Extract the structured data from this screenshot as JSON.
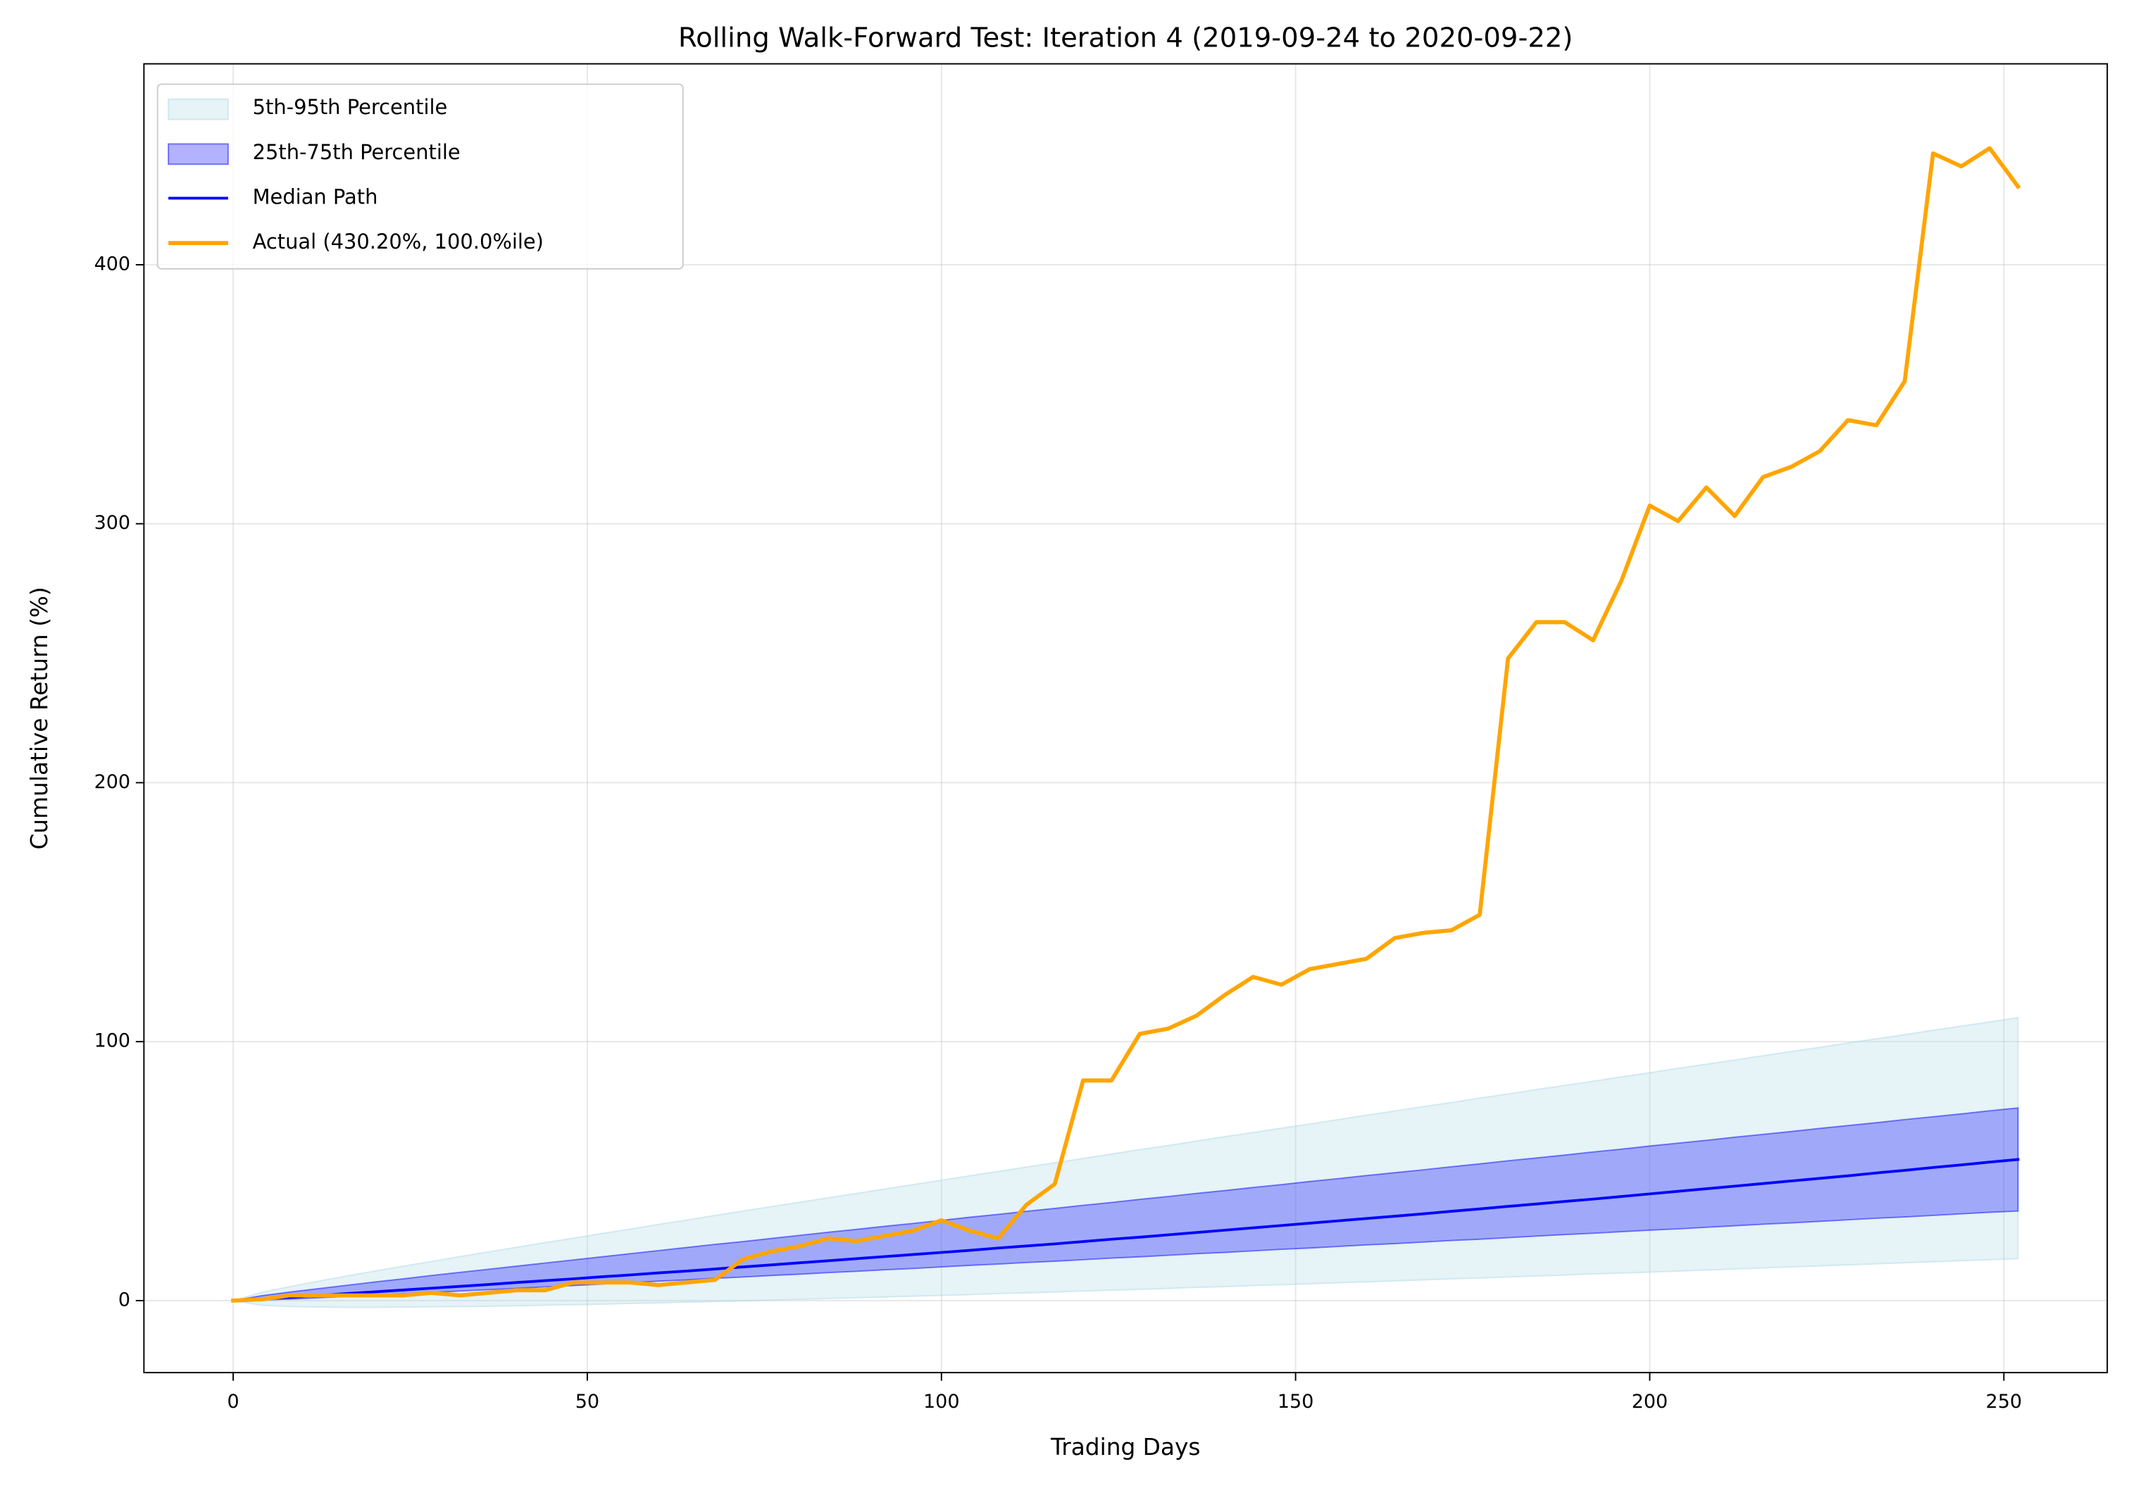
{
  "chart_data": {
    "type": "line",
    "title": "Rolling Walk-Forward Test: Iteration 4 (2019-09-24 to 2020-09-22)",
    "xlabel": "Trading Days",
    "ylabel": "Cumulative Return (%)",
    "x": [
      0,
      4,
      8,
      12,
      16,
      20,
      24,
      28,
      32,
      36,
      40,
      44,
      48,
      52,
      56,
      60,
      64,
      68,
      72,
      76,
      80,
      84,
      88,
      92,
      96,
      100,
      104,
      108,
      112,
      116,
      120,
      124,
      128,
      132,
      136,
      140,
      144,
      148,
      152,
      156,
      160,
      164,
      168,
      172,
      176,
      180,
      184,
      188,
      192,
      196,
      200,
      204,
      208,
      212,
      216,
      220,
      224,
      228,
      232,
      236,
      240,
      244,
      248,
      252
    ],
    "series": [
      {
        "name": "5th-95th Percentile",
        "color": "#add8e6",
        "opacity": 0.3,
        "low": [
          0,
          -1.8,
          -2.3,
          -2.5,
          -2.6,
          -2.6,
          -2.5,
          -2.4,
          -2.3,
          -2.2,
          -2.0,
          -1.8,
          -1.6,
          -1.4,
          -1.1,
          -0.9,
          -0.6,
          -0.4,
          -0.1,
          0.2,
          0.5,
          0.8,
          1.1,
          1.4,
          1.7,
          2.0,
          2.3,
          2.7,
          3.0,
          3.3,
          3.7,
          4.0,
          4.3,
          4.7,
          5.1,
          5.4,
          5.8,
          6.1,
          6.5,
          6.9,
          7.2,
          7.6,
          8.0,
          8.4,
          8.7,
          9.1,
          9.5,
          9.9,
          10.3,
          10.6,
          11.0,
          11.4,
          11.8,
          12.2,
          12.6,
          13.0,
          13.4,
          13.8,
          14.2,
          14.6,
          15.0,
          15.4,
          15.8,
          16.2
        ],
        "high": [
          0,
          3.2,
          5.4,
          7.5,
          9.5,
          11.4,
          13.3,
          15.1,
          17.0,
          18.8,
          20.6,
          22.4,
          24.1,
          25.9,
          27.6,
          29.4,
          31.1,
          32.9,
          34.6,
          36.3,
          38.0,
          39.7,
          41.4,
          43.1,
          44.8,
          46.5,
          48.2,
          49.9,
          51.6,
          53.2,
          54.9,
          56.6,
          58.3,
          59.9,
          61.6,
          63.3,
          64.9,
          66.6,
          68.2,
          69.9,
          71.6,
          73.2,
          74.9,
          76.5,
          78.2,
          79.8,
          81.5,
          83.1,
          84.7,
          86.4,
          88.0,
          89.7,
          91.3,
          92.9,
          94.6,
          96.2,
          97.8,
          99.5,
          101.1,
          102.7,
          104.4,
          106.0,
          107.6,
          109.3
        ]
      },
      {
        "name": "25th-75th Percentile",
        "color": "#0000ff",
        "opacity": 0.3,
        "low": [
          0,
          0.2,
          0.6,
          1.1,
          1.6,
          2.1,
          2.6,
          3.1,
          3.7,
          4.2,
          4.7,
          5.3,
          5.8,
          6.4,
          6.9,
          7.5,
          8.0,
          8.6,
          9.1,
          9.7,
          10.2,
          10.8,
          11.3,
          11.9,
          12.4,
          13.0,
          13.6,
          14.1,
          14.7,
          15.2,
          15.8,
          16.4,
          16.9,
          17.5,
          18.1,
          18.6,
          19.2,
          19.8,
          20.3,
          20.9,
          21.5,
          22.0,
          22.6,
          23.2,
          23.7,
          24.3,
          24.9,
          25.5,
          26.0,
          26.6,
          27.2,
          27.7,
          28.3,
          28.9,
          29.5,
          30.0,
          30.6,
          31.2,
          31.8,
          32.3,
          32.9,
          33.5,
          34.1,
          34.6
        ],
        "high": [
          0,
          1.9,
          3.3,
          4.6,
          5.9,
          7.2,
          8.4,
          9.7,
          10.9,
          12.1,
          13.3,
          14.5,
          15.7,
          16.9,
          18.1,
          19.3,
          20.5,
          21.7,
          22.8,
          24.0,
          25.2,
          26.4,
          27.5,
          28.7,
          29.8,
          31.0,
          32.2,
          33.3,
          34.5,
          35.6,
          36.8,
          37.9,
          39.1,
          40.2,
          41.4,
          42.5,
          43.7,
          44.8,
          46.0,
          47.1,
          48.3,
          49.4,
          50.5,
          51.7,
          52.8,
          54.0,
          55.1,
          56.2,
          57.4,
          58.5,
          59.7,
          60.8,
          61.9,
          63.1,
          64.2,
          65.3,
          66.5,
          67.6,
          68.7,
          69.9,
          71.0,
          72.1,
          73.3,
          74.4
        ]
      },
      {
        "name": "Median Path",
        "color": "#0000ff",
        "width": 2,
        "values": [
          0,
          0.7,
          1.3,
          2.0,
          2.7,
          3.4,
          4.1,
          4.8,
          5.5,
          6.2,
          7.0,
          7.7,
          8.4,
          9.2,
          9.9,
          10.7,
          11.4,
          12.2,
          13.0,
          13.8,
          14.6,
          15.4,
          16.2,
          17.0,
          17.8,
          18.6,
          19.4,
          20.3,
          21.1,
          21.9,
          22.8,
          23.7,
          24.5,
          25.4,
          26.3,
          27.2,
          28.1,
          29.0,
          29.9,
          30.8,
          31.7,
          32.6,
          33.5,
          34.5,
          35.4,
          36.4,
          37.3,
          38.3,
          39.2,
          40.2,
          41.2,
          42.2,
          43.2,
          44.2,
          45.2,
          46.2,
          47.2,
          48.2,
          49.3,
          50.3,
          51.4,
          52.4,
          53.5,
          54.5
        ]
      },
      {
        "name": "Actual (430.20%, 100.0%ile)",
        "color": "#ffa500",
        "width": 3,
        "values": [
          0,
          0.5,
          2,
          2,
          2,
          2,
          2,
          3,
          2,
          3,
          4,
          4,
          7,
          7,
          7,
          6,
          7,
          8,
          16,
          19,
          21,
          24,
          23,
          25,
          27,
          31,
          27,
          24,
          37,
          45,
          85,
          85,
          103,
          105,
          110,
          118,
          125,
          122,
          128,
          130,
          132,
          140,
          142,
          143,
          149,
          248,
          262,
          262,
          255,
          278,
          307,
          301,
          314,
          303,
          318,
          322,
          328,
          340,
          338,
          355,
          443,
          438,
          445,
          430.2
        ]
      }
    ],
    "xlim": [
      -12.6,
      264.6
    ],
    "ylim": [
      -27.8,
      477.6
    ],
    "xticks": [
      0,
      50,
      100,
      150,
      200,
      250
    ],
    "yticks": [
      0,
      100,
      200,
      300,
      400
    ],
    "grid": true,
    "legend": "upper left"
  }
}
